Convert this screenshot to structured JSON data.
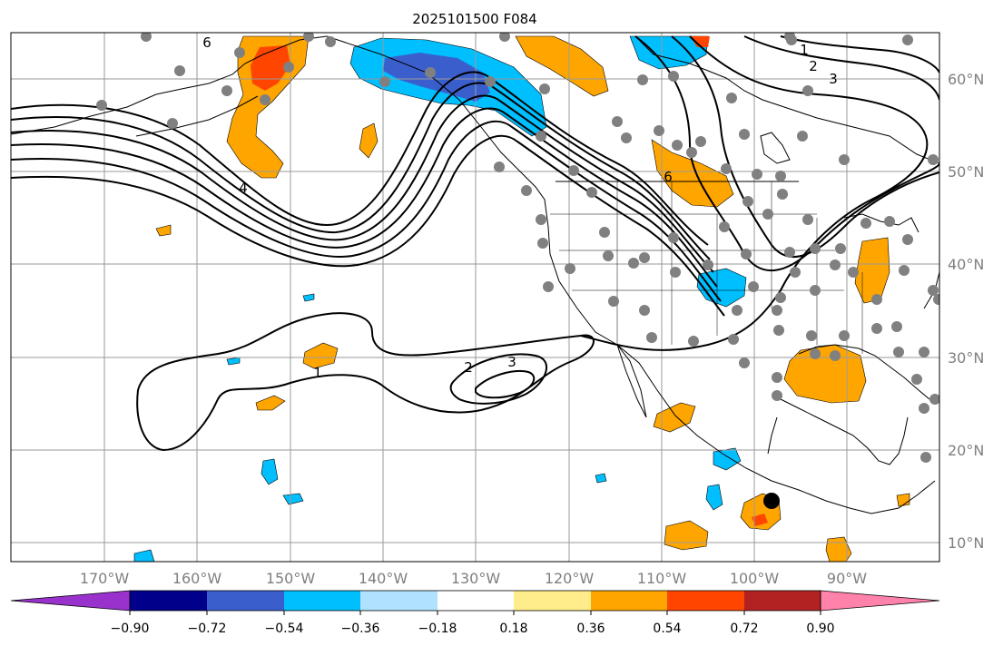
{
  "title": "2025101500 F084",
  "map": {
    "lon_labels": [
      "170°W",
      "160°W",
      "150°W",
      "140°W",
      "130°W",
      "120°W",
      "110°W",
      "100°W",
      "90°W"
    ],
    "lat_labels": [
      "60°N",
      "50°N",
      "40°N",
      "30°N",
      "20°N",
      "10°N"
    ]
  },
  "colorbar": {
    "tick_labels": [
      "−0.90",
      "−0.72",
      "−0.54",
      "−0.36",
      "−0.18",
      "0.18",
      "0.36",
      "0.54",
      "0.72",
      "0.90"
    ],
    "colors": [
      "#9932cc",
      "#00008b",
      "#3a5fcd",
      "#00bfff",
      "#b0e2ff",
      "#ffffff",
      "#ffec8b",
      "#ffa500",
      "#ff4500",
      "#b22222",
      "#ff82ab"
    ]
  },
  "contour_labels": [
    "6",
    "4",
    "1",
    "2",
    "3",
    "1",
    "2",
    "3",
    "6"
  ],
  "colors": {
    "orange": "#ffa500",
    "red_orange": "#ff4500",
    "deep_sky_blue": "#00bfff",
    "royal_blue": "#3a5fcd",
    "station_dot": "#808080"
  }
}
